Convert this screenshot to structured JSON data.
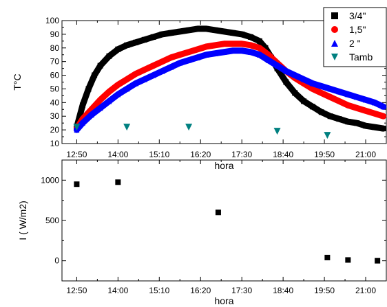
{
  "chart_data": [
    {
      "type": "scatter",
      "xlabel": "hora",
      "ylabel": "T°C",
      "x_ticks": [
        "12:50",
        "14:00",
        "15:10",
        "16:20",
        "17:30",
        "18:40",
        "19:50",
        "21:00"
      ],
      "x_range": [
        "12:25",
        "21:35"
      ],
      "ylim": [
        10,
        100
      ],
      "y_ticks": [
        10,
        20,
        30,
        40,
        50,
        60,
        70,
        80,
        90,
        100
      ],
      "grid": false,
      "legend_position": "top-right",
      "series": [
        {
          "name": "3/4\"",
          "marker": "square",
          "color": "#000000",
          "x": [
            "12:50",
            "13:00",
            "13:10",
            "13:20",
            "13:30",
            "13:45",
            "14:00",
            "14:15",
            "14:30",
            "14:45",
            "15:00",
            "15:15",
            "15:30",
            "15:45",
            "16:00",
            "16:15",
            "16:30",
            "16:45",
            "17:00",
            "17:15",
            "17:30",
            "17:45",
            "18:00",
            "18:10",
            "18:20",
            "18:30",
            "18:45",
            "19:00",
            "19:15",
            "19:30",
            "19:45",
            "20:00",
            "20:15",
            "20:30",
            "20:45",
            "21:00",
            "21:15",
            "21:30"
          ],
          "y": [
            22,
            38,
            50,
            60,
            67,
            74,
            79,
            82,
            84,
            86,
            88,
            90,
            91,
            92,
            93,
            94,
            94,
            93,
            92,
            91,
            90,
            88,
            85,
            80,
            73,
            65,
            55,
            47,
            41,
            37,
            33,
            30,
            28,
            26,
            25,
            23,
            22,
            21
          ]
        },
        {
          "name": "1,5\"",
          "marker": "circle",
          "color": "#ff0000",
          "x": [
            "12:50",
            "13:00",
            "13:15",
            "13:30",
            "13:45",
            "14:00",
            "14:15",
            "14:30",
            "14:45",
            "15:00",
            "15:15",
            "15:30",
            "15:45",
            "16:00",
            "16:15",
            "16:30",
            "16:45",
            "17:00",
            "17:15",
            "17:30",
            "17:45",
            "18:00",
            "18:15",
            "18:30",
            "18:45",
            "19:00",
            "19:15",
            "19:30",
            "19:45",
            "20:00",
            "20:15",
            "20:30",
            "20:45",
            "21:00",
            "21:15",
            "21:30"
          ],
          "y": [
            21,
            28,
            35,
            42,
            48,
            53,
            57,
            61,
            64,
            67,
            70,
            73,
            75,
            77,
            79,
            81,
            82,
            83,
            83,
            83,
            82,
            80,
            75,
            69,
            63,
            58,
            54,
            50,
            47,
            44,
            41,
            38,
            36,
            34,
            32,
            30
          ]
        },
        {
          "name": "2 \"",
          "marker": "triangle-up",
          "color": "#0000ff",
          "x": [
            "12:50",
            "13:00",
            "13:15",
            "13:30",
            "13:45",
            "14:00",
            "14:15",
            "14:30",
            "14:45",
            "15:00",
            "15:15",
            "15:30",
            "15:45",
            "16:00",
            "16:15",
            "16:30",
            "16:45",
            "17:00",
            "17:15",
            "17:30",
            "17:45",
            "18:00",
            "18:15",
            "18:30",
            "18:45",
            "19:00",
            "19:15",
            "19:30",
            "19:45",
            "20:00",
            "20:15",
            "20:30",
            "20:45",
            "21:00",
            "21:15",
            "21:30"
          ],
          "y": [
            20,
            25,
            31,
            36,
            41,
            46,
            50,
            54,
            57,
            60,
            63,
            66,
            69,
            71,
            73,
            75,
            76,
            77,
            78,
            78,
            77,
            75,
            71,
            67,
            63,
            60,
            57,
            54,
            52,
            50,
            48,
            46,
            44,
            42,
            40,
            37
          ]
        },
        {
          "name": "Tamb",
          "marker": "triangle-down",
          "color": "#008080",
          "x": [
            "12:50",
            "14:15",
            "16:00",
            "18:30",
            "19:55"
          ],
          "y": [
            22,
            22,
            22,
            19,
            16
          ]
        }
      ]
    },
    {
      "type": "scatter",
      "xlabel": "hora",
      "ylabel": "I ( W/m2)",
      "x_ticks": [
        "12:50",
        "14:00",
        "15:10",
        "16:20",
        "17:30",
        "18:40",
        "19:50",
        "21:00"
      ],
      "x_range": [
        "12:25",
        "21:35"
      ],
      "ylim": [
        -250,
        1250
      ],
      "y_ticks": [
        0,
        500,
        1000
      ],
      "grid": false,
      "series": [
        {
          "marker": "square",
          "color": "#000000",
          "x": [
            "12:50",
            "14:00",
            "16:50",
            "19:55",
            "20:30",
            "21:20"
          ],
          "y": [
            950,
            975,
            600,
            40,
            10,
            0
          ]
        }
      ]
    }
  ]
}
